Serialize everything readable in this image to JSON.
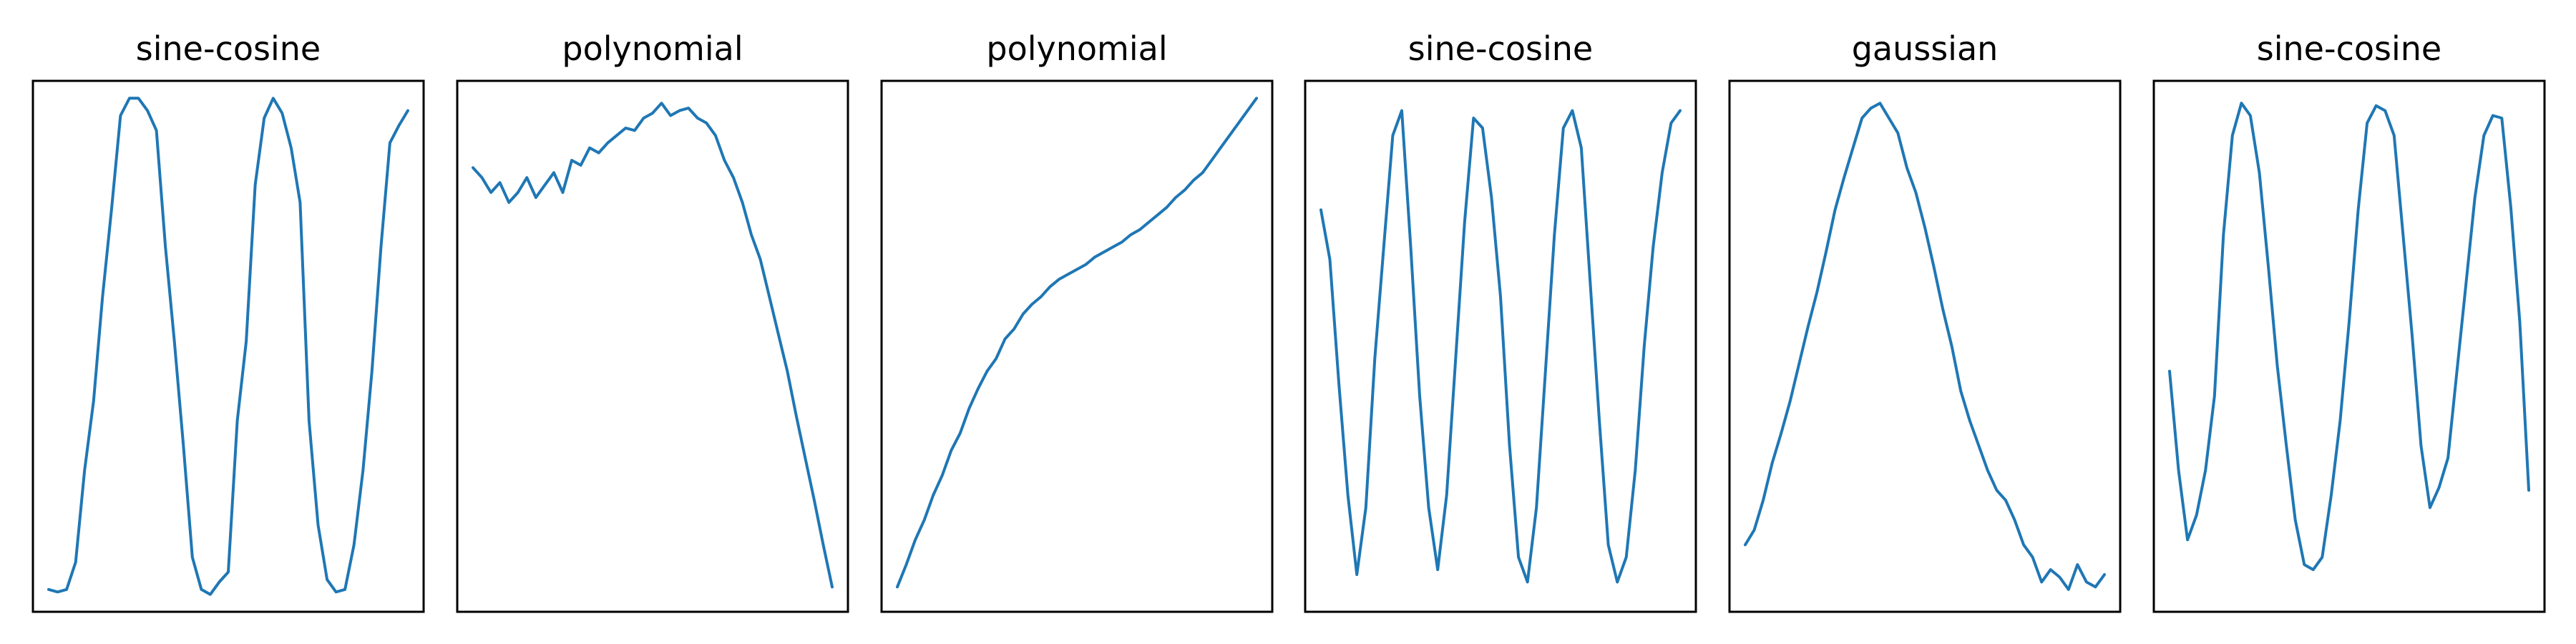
{
  "figure": {
    "line_color": "#1f77b4",
    "frame_color": "#000000",
    "background_color": "#ffffff"
  },
  "chart_data": [
    {
      "type": "line",
      "title": "sine-cosine",
      "xlabel": "",
      "ylabel": "",
      "grid": false,
      "xlim": [
        0,
        1
      ],
      "ylim": [
        -1.07,
        1.07
      ],
      "x": [
        0.0,
        0.025,
        0.05,
        0.075,
        0.1,
        0.125,
        0.15,
        0.175,
        0.2,
        0.225,
        0.25,
        0.275,
        0.3,
        0.325,
        0.35,
        0.375,
        0.4,
        0.425,
        0.45,
        0.475,
        0.5,
        0.525,
        0.55,
        0.575,
        0.6,
        0.625,
        0.65,
        0.675,
        0.7,
        0.725,
        0.75,
        0.775,
        0.8,
        0.825,
        0.85,
        0.875,
        0.9,
        0.925,
        0.95,
        0.975,
        1.0
      ],
      "y": [
        -0.98,
        -0.99,
        -0.98,
        -0.87,
        -0.5,
        -0.22,
        0.2,
        0.55,
        0.93,
        1.0,
        1.0,
        0.95,
        0.87,
        0.4,
        0.02,
        -0.4,
        -0.85,
        -0.98,
        -1.0,
        -0.95,
        -0.91,
        -0.3,
        0.02,
        0.65,
        0.92,
        1.0,
        0.94,
        0.8,
        0.58,
        -0.3,
        -0.72,
        -0.94,
        -0.99,
        -0.98,
        -0.8,
        -0.5,
        -0.1,
        0.4,
        0.82,
        0.89,
        0.95
      ]
    },
    {
      "type": "line",
      "title": "polynomial",
      "xlabel": "",
      "ylabel": "",
      "grid": false,
      "xlim": [
        0,
        1
      ],
      "ylim": [
        -1.07,
        1.07
      ],
      "x": [
        0.0,
        0.025,
        0.05,
        0.075,
        0.1,
        0.125,
        0.15,
        0.175,
        0.2,
        0.225,
        0.25,
        0.275,
        0.3,
        0.325,
        0.35,
        0.375,
        0.4,
        0.425,
        0.45,
        0.475,
        0.5,
        0.525,
        0.55,
        0.575,
        0.6,
        0.625,
        0.65,
        0.675,
        0.7,
        0.725,
        0.75,
        0.775,
        0.8,
        0.825,
        0.85,
        0.875,
        0.9,
        0.925,
        0.95,
        0.975,
        1.0
      ],
      "y": [
        0.72,
        0.68,
        0.62,
        0.66,
        0.58,
        0.62,
        0.68,
        0.6,
        0.65,
        0.7,
        0.62,
        0.75,
        0.73,
        0.8,
        0.78,
        0.82,
        0.85,
        0.88,
        0.87,
        0.92,
        0.94,
        0.98,
        0.93,
        0.95,
        0.96,
        0.92,
        0.9,
        0.85,
        0.75,
        0.68,
        0.58,
        0.45,
        0.35,
        0.2,
        0.05,
        -0.1,
        -0.28,
        -0.45,
        -0.62,
        -0.8,
        -0.97
      ]
    },
    {
      "type": "line",
      "title": "polynomial",
      "xlabel": "",
      "ylabel": "",
      "grid": false,
      "xlim": [
        0,
        1
      ],
      "ylim": [
        -1.07,
        1.07
      ],
      "x": [
        0.0,
        0.025,
        0.05,
        0.075,
        0.1,
        0.125,
        0.15,
        0.175,
        0.2,
        0.225,
        0.25,
        0.275,
        0.3,
        0.325,
        0.35,
        0.375,
        0.4,
        0.425,
        0.45,
        0.475,
        0.5,
        0.525,
        0.55,
        0.575,
        0.6,
        0.625,
        0.65,
        0.675,
        0.7,
        0.725,
        0.75,
        0.775,
        0.8,
        0.825,
        0.85,
        0.875,
        0.9,
        0.925,
        0.95,
        0.975,
        1.0
      ],
      "y": [
        -0.97,
        -0.88,
        -0.78,
        -0.7,
        -0.6,
        -0.52,
        -0.42,
        -0.35,
        -0.25,
        -0.17,
        -0.1,
        -0.05,
        0.03,
        0.07,
        0.13,
        0.17,
        0.2,
        0.24,
        0.27,
        0.29,
        0.31,
        0.33,
        0.36,
        0.38,
        0.4,
        0.42,
        0.45,
        0.47,
        0.5,
        0.53,
        0.56,
        0.6,
        0.63,
        0.67,
        0.7,
        0.75,
        0.8,
        0.85,
        0.9,
        0.95,
        1.0
      ]
    },
    {
      "type": "line",
      "title": "sine-cosine",
      "xlabel": "",
      "ylabel": "",
      "grid": false,
      "xlim": [
        0,
        1
      ],
      "ylim": [
        -1.07,
        1.07
      ],
      "x": [
        0.0,
        0.025,
        0.05,
        0.075,
        0.1,
        0.125,
        0.15,
        0.175,
        0.2,
        0.225,
        0.25,
        0.275,
        0.3,
        0.325,
        0.35,
        0.375,
        0.4,
        0.425,
        0.45,
        0.475,
        0.5,
        0.525,
        0.55,
        0.575,
        0.6,
        0.625,
        0.65,
        0.675,
        0.7,
        0.725,
        0.75,
        0.775,
        0.8,
        0.825,
        0.85,
        0.875,
        0.9,
        0.925,
        0.95,
        0.975,
        1.0
      ],
      "y": [
        0.55,
        0.35,
        -0.15,
        -0.6,
        -0.92,
        -0.65,
        -0.05,
        0.4,
        0.85,
        0.95,
        0.4,
        -0.2,
        -0.65,
        -0.9,
        -0.6,
        -0.05,
        0.5,
        0.92,
        0.88,
        0.6,
        0.2,
        -0.4,
        -0.85,
        -0.95,
        -0.65,
        -0.1,
        0.45,
        0.88,
        0.95,
        0.8,
        0.25,
        -0.3,
        -0.8,
        -0.95,
        -0.85,
        -0.5,
        0.0,
        0.4,
        0.7,
        0.9,
        0.95
      ]
    },
    {
      "type": "line",
      "title": "gaussian",
      "xlabel": "",
      "ylabel": "",
      "grid": false,
      "xlim": [
        0,
        1
      ],
      "ylim": [
        -1.07,
        1.07
      ],
      "x": [
        0.0,
        0.025,
        0.05,
        0.075,
        0.1,
        0.125,
        0.15,
        0.175,
        0.2,
        0.225,
        0.25,
        0.275,
        0.3,
        0.325,
        0.35,
        0.375,
        0.4,
        0.425,
        0.45,
        0.475,
        0.5,
        0.525,
        0.55,
        0.575,
        0.6,
        0.625,
        0.65,
        0.675,
        0.7,
        0.725,
        0.75,
        0.775,
        0.8,
        0.825,
        0.85,
        0.875,
        0.9,
        0.925,
        0.95,
        0.975,
        1.0
      ],
      "y": [
        -0.8,
        -0.74,
        -0.62,
        -0.47,
        -0.35,
        -0.22,
        -0.07,
        0.08,
        0.22,
        0.38,
        0.55,
        0.68,
        0.8,
        0.92,
        0.96,
        0.98,
        0.92,
        0.86,
        0.72,
        0.62,
        0.48,
        0.32,
        0.15,
        0.0,
        -0.18,
        -0.3,
        -0.4,
        -0.5,
        -0.58,
        -0.62,
        -0.7,
        -0.8,
        -0.85,
        -0.95,
        -0.9,
        -0.93,
        -0.98,
        -0.88,
        -0.95,
        -0.97,
        -0.92
      ]
    },
    {
      "type": "line",
      "title": "sine-cosine",
      "xlabel": "",
      "ylabel": "",
      "grid": false,
      "xlim": [
        0,
        1
      ],
      "ylim": [
        -1.07,
        1.07
      ],
      "x": [
        0.0,
        0.025,
        0.05,
        0.075,
        0.1,
        0.125,
        0.15,
        0.175,
        0.2,
        0.225,
        0.25,
        0.275,
        0.3,
        0.325,
        0.35,
        0.375,
        0.4,
        0.425,
        0.45,
        0.475,
        0.5,
        0.525,
        0.55,
        0.575,
        0.6,
        0.625,
        0.65,
        0.675,
        0.7,
        0.725,
        0.75,
        0.775,
        0.8,
        0.825,
        0.85,
        0.875,
        0.9,
        0.925,
        0.95,
        0.975,
        1.0
      ],
      "y": [
        -0.1,
        -0.5,
        -0.78,
        -0.68,
        -0.5,
        -0.2,
        0.45,
        0.85,
        0.98,
        0.93,
        0.7,
        0.32,
        -0.08,
        -0.4,
        -0.7,
        -0.88,
        -0.9,
        -0.85,
        -0.6,
        -0.3,
        0.1,
        0.55,
        0.9,
        0.97,
        0.95,
        0.85,
        0.45,
        0.05,
        -0.4,
        -0.65,
        -0.57,
        -0.45,
        -0.1,
        0.25,
        0.6,
        0.85,
        0.93,
        0.92,
        0.56,
        0.1,
        -0.58
      ]
    }
  ]
}
